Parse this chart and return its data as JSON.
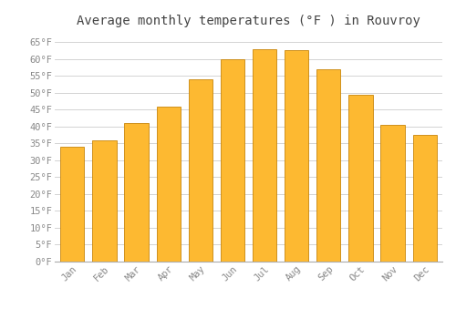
{
  "months": [
    "Jan",
    "Feb",
    "Mar",
    "Apr",
    "May",
    "Jun",
    "Jul",
    "Aug",
    "Sep",
    "Oct",
    "Nov",
    "Dec"
  ],
  "values": [
    34,
    36,
    41,
    46,
    54,
    60,
    63,
    62.5,
    57,
    49.5,
    40.5,
    37.5
  ],
  "bar_color": "#FDB931",
  "bar_edge_color": "#C8860A",
  "title": "Average monthly temperatures (°F ) in Rouvroy",
  "ylim": [
    0,
    68
  ],
  "yticks": [
    0,
    5,
    10,
    15,
    20,
    25,
    30,
    35,
    40,
    45,
    50,
    55,
    60,
    65
  ],
  "ytick_labels": [
    "0°F",
    "5°F",
    "10°F",
    "15°F",
    "20°F",
    "25°F",
    "30°F",
    "35°F",
    "40°F",
    "45°F",
    "50°F",
    "55°F",
    "60°F",
    "65°F"
  ],
  "background_color": "#ffffff",
  "grid_color": "#cccccc",
  "title_fontsize": 10,
  "tick_fontsize": 7.5,
  "font_family": "monospace"
}
